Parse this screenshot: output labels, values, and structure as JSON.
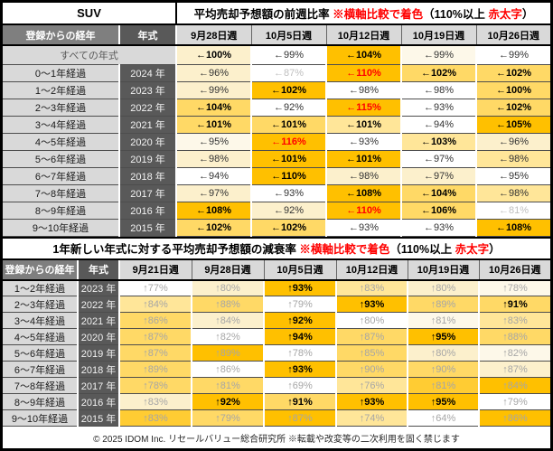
{
  "chart_data": [
    {
      "type": "table",
      "name": "week-over-week-average-sale-forecast-ratio",
      "corner_label": "SUV",
      "title_text": "平均売却予想額の前週比率 ※横軸比較で着色（110%以上 赤太字）",
      "title_parts": [
        {
          "t": "平均売却予想額の前週比率 ",
          "red": false
        },
        {
          "t": "※横軸比較で着色",
          "red": true
        },
        {
          "t": "（110%以上 ",
          "red": false
        },
        {
          "t": "赤太字",
          "red": true
        },
        {
          "t": "）",
          "red": false
        }
      ],
      "headers": {
        "period": "登録からの経年",
        "year": "年式",
        "dates": [
          "9月28日週",
          "10月5日週",
          "10月12日週",
          "10月19日週",
          "10月26日週"
        ]
      },
      "all_years": {
        "label": "すべての年式",
        "cells": [
          {
            "v": "←100%",
            "n": 100,
            "bg": "c2",
            "st": "b"
          },
          {
            "v": "←99%",
            "n": 99,
            "bg": "w",
            "st": "n"
          },
          {
            "v": "←104%",
            "n": 104,
            "bg": "o",
            "st": "b"
          },
          {
            "v": "←99%",
            "n": 99,
            "bg": "c1",
            "st": "n"
          },
          {
            "v": "←99%",
            "n": 99,
            "bg": "w",
            "st": "n"
          }
        ]
      },
      "rows": [
        {
          "label": "0～1年経過",
          "year": "2024 年",
          "cells": [
            {
              "v": "←96%",
              "n": 96,
              "bg": "c2",
              "st": "n"
            },
            {
              "v": "←87%",
              "n": 87,
              "bg": "w",
              "st": "lg"
            },
            {
              "v": "←110%",
              "n": 110,
              "bg": "o",
              "st": "r"
            },
            {
              "v": "←102%",
              "n": 102,
              "bg": "y2",
              "st": "b"
            },
            {
              "v": "←102%",
              "n": 102,
              "bg": "y2",
              "st": "b"
            }
          ]
        },
        {
          "label": "1～2年経過",
          "year": "2023 年",
          "cells": [
            {
              "v": "←99%",
              "n": 99,
              "bg": "c2",
              "st": "n"
            },
            {
              "v": "←102%",
              "n": 102,
              "bg": "o",
              "st": "b"
            },
            {
              "v": "←98%",
              "n": 98,
              "bg": "w",
              "st": "n"
            },
            {
              "v": "←98%",
              "n": 98,
              "bg": "w",
              "st": "n"
            },
            {
              "v": "←100%",
              "n": 100,
              "bg": "y2",
              "st": "b"
            }
          ]
        },
        {
          "label": "2～3年経過",
          "year": "2022 年",
          "cells": [
            {
              "v": "←104%",
              "n": 104,
              "bg": "y2",
              "st": "b"
            },
            {
              "v": "←92%",
              "n": 92,
              "bg": "w",
              "st": "n"
            },
            {
              "v": "←115%",
              "n": 115,
              "bg": "o",
              "st": "r"
            },
            {
              "v": "←93%",
              "n": 93,
              "bg": "w",
              "st": "n"
            },
            {
              "v": "←102%",
              "n": 102,
              "bg": "y2",
              "st": "b"
            }
          ]
        },
        {
          "label": "3～4年経過",
          "year": "2021 年",
          "cells": [
            {
              "v": "←101%",
              "n": 101,
              "bg": "y2",
              "st": "b"
            },
            {
              "v": "←101%",
              "n": 101,
              "bg": "y2",
              "st": "b"
            },
            {
              "v": "←101%",
              "n": 101,
              "bg": "y1",
              "st": "b"
            },
            {
              "v": "←94%",
              "n": 94,
              "bg": "w",
              "st": "n"
            },
            {
              "v": "←105%",
              "n": 105,
              "bg": "o",
              "st": "b"
            }
          ]
        },
        {
          "label": "4～5年経過",
          "year": "2020 年",
          "cells": [
            {
              "v": "←95%",
              "n": 95,
              "bg": "c1",
              "st": "n"
            },
            {
              "v": "←116%",
              "n": 116,
              "bg": "o",
              "st": "r"
            },
            {
              "v": "←93%",
              "n": 93,
              "bg": "w",
              "st": "n"
            },
            {
              "v": "←103%",
              "n": 103,
              "bg": "y1",
              "st": "b"
            },
            {
              "v": "←96%",
              "n": 96,
              "bg": "c2",
              "st": "n"
            }
          ]
        },
        {
          "label": "5～6年経過",
          "year": "2019 年",
          "cells": [
            {
              "v": "←98%",
              "n": 98,
              "bg": "c2",
              "st": "n"
            },
            {
              "v": "←101%",
              "n": 101,
              "bg": "o",
              "st": "b"
            },
            {
              "v": "←101%",
              "n": 101,
              "bg": "o",
              "st": "b"
            },
            {
              "v": "←97%",
              "n": 97,
              "bg": "w",
              "st": "n"
            },
            {
              "v": "←98%",
              "n": 98,
              "bg": "y1",
              "st": "n"
            }
          ]
        },
        {
          "label": "6～7年経過",
          "year": "2018 年",
          "cells": [
            {
              "v": "←94%",
              "n": 94,
              "bg": "w",
              "st": "n"
            },
            {
              "v": "←110%",
              "n": 110,
              "bg": "o",
              "st": "b"
            },
            {
              "v": "←98%",
              "n": 98,
              "bg": "c2",
              "st": "n"
            },
            {
              "v": "←97%",
              "n": 97,
              "bg": "c2",
              "st": "n"
            },
            {
              "v": "←95%",
              "n": 95,
              "bg": "w",
              "st": "n"
            }
          ]
        },
        {
          "label": "7～8年経過",
          "year": "2017 年",
          "cells": [
            {
              "v": "←97%",
              "n": 97,
              "bg": "c2",
              "st": "n"
            },
            {
              "v": "←93%",
              "n": 93,
              "bg": "w",
              "st": "n"
            },
            {
              "v": "←108%",
              "n": 108,
              "bg": "o",
              "st": "b"
            },
            {
              "v": "←104%",
              "n": 104,
              "bg": "y2",
              "st": "b"
            },
            {
              "v": "←98%",
              "n": 98,
              "bg": "y1",
              "st": "n"
            }
          ]
        },
        {
          "label": "8～9年経過",
          "year": "2016 年",
          "cells": [
            {
              "v": "←108%",
              "n": 108,
              "bg": "o",
              "st": "b"
            },
            {
              "v": "←92%",
              "n": 92,
              "bg": "c2",
              "st": "n"
            },
            {
              "v": "←110%",
              "n": 110,
              "bg": "o",
              "st": "r"
            },
            {
              "v": "←106%",
              "n": 106,
              "bg": "y2",
              "st": "b"
            },
            {
              "v": "←81%",
              "n": 81,
              "bg": "w",
              "st": "lg"
            }
          ]
        },
        {
          "label": "9～10年経過",
          "year": "2015 年",
          "cells": [
            {
              "v": "←102%",
              "n": 102,
              "bg": "y2",
              "st": "b"
            },
            {
              "v": "←102%",
              "n": 102,
              "bg": "y2",
              "st": "b"
            },
            {
              "v": "←93%",
              "n": 93,
              "bg": "w",
              "st": "n"
            },
            {
              "v": "←93%",
              "n": 93,
              "bg": "w",
              "st": "n"
            },
            {
              "v": "←108%",
              "n": 108,
              "bg": "o",
              "st": "b"
            }
          ]
        }
      ]
    },
    {
      "type": "table",
      "name": "decay-rate-vs-one-year-newer-model",
      "title_text": "1年新しい年式に対する平均売却予想額の減衰率 ※横軸比較で着色（110%以上 赤太字）",
      "title_parts": [
        {
          "t": "1年新しい年式に対する平均売却予想額の減衰率 ",
          "red": false
        },
        {
          "t": "※横軸比較で着色",
          "red": true
        },
        {
          "t": "（110%以上 ",
          "red": false
        },
        {
          "t": "赤太字",
          "red": true
        },
        {
          "t": "）",
          "red": false
        }
      ],
      "headers": {
        "period": "登録からの経年",
        "year": "年式",
        "dates": [
          "9月21日週",
          "9月28日週",
          "10月5日週",
          "10月12日週",
          "10月19日週",
          "10月26日週"
        ]
      },
      "rows": [
        {
          "label": "1～2年経過",
          "year": "2023 年",
          "cells": [
            {
              "v": "↑77%",
              "n": 77,
              "bg": "w",
              "st": "g"
            },
            {
              "v": "↑80%",
              "n": 80,
              "bg": "c2",
              "st": "g"
            },
            {
              "v": "↑93%",
              "n": 93,
              "bg": "o",
              "st": "b"
            },
            {
              "v": "↑83%",
              "n": 83,
              "bg": "y1",
              "st": "g"
            },
            {
              "v": "↑80%",
              "n": 80,
              "bg": "c2",
              "st": "g"
            },
            {
              "v": "↑78%",
              "n": 78,
              "bg": "c1",
              "st": "g"
            }
          ]
        },
        {
          "label": "2～3年経過",
          "year": "2022 年",
          "cells": [
            {
              "v": "↑84%",
              "n": 84,
              "bg": "y1",
              "st": "g"
            },
            {
              "v": "↑88%",
              "n": 88,
              "bg": "y2",
              "st": "g"
            },
            {
              "v": "↑79%",
              "n": 79,
              "bg": "w",
              "st": "g"
            },
            {
              "v": "↑93%",
              "n": 93,
              "bg": "o",
              "st": "b"
            },
            {
              "v": "↑89%",
              "n": 89,
              "bg": "y2",
              "st": "g"
            },
            {
              "v": "↑91%",
              "n": 91,
              "bg": "y2",
              "st": "b"
            }
          ]
        },
        {
          "label": "3～4年経過",
          "year": "2021 年",
          "cells": [
            {
              "v": "↑86%",
              "n": 86,
              "bg": "y2",
              "st": "g"
            },
            {
              "v": "↑84%",
              "n": 84,
              "bg": "c2",
              "st": "g"
            },
            {
              "v": "↑92%",
              "n": 92,
              "bg": "o",
              "st": "b"
            },
            {
              "v": "↑80%",
              "n": 80,
              "bg": "w",
              "st": "g"
            },
            {
              "v": "↑81%",
              "n": 81,
              "bg": "c1",
              "st": "g"
            },
            {
              "v": "↑83%",
              "n": 83,
              "bg": "y1",
              "st": "g"
            }
          ]
        },
        {
          "label": "4～5年経過",
          "year": "2020 年",
          "cells": [
            {
              "v": "↑87%",
              "n": 87,
              "bg": "y2",
              "st": "g"
            },
            {
              "v": "↑82%",
              "n": 82,
              "bg": "w",
              "st": "g"
            },
            {
              "v": "↑94%",
              "n": 94,
              "bg": "o",
              "st": "b"
            },
            {
              "v": "↑87%",
              "n": 87,
              "bg": "y2",
              "st": "g"
            },
            {
              "v": "↑95%",
              "n": 95,
              "bg": "o",
              "st": "b"
            },
            {
              "v": "↑88%",
              "n": 88,
              "bg": "y2",
              "st": "g"
            }
          ]
        },
        {
          "label": "5～6年経過",
          "year": "2019 年",
          "cells": [
            {
              "v": "↑87%",
              "n": 87,
              "bg": "y2",
              "st": "g"
            },
            {
              "v": "↑89%",
              "n": 89,
              "bg": "o",
              "st": "g"
            },
            {
              "v": "↑78%",
              "n": 78,
              "bg": "w",
              "st": "g"
            },
            {
              "v": "↑85%",
              "n": 85,
              "bg": "y2",
              "st": "g"
            },
            {
              "v": "↑80%",
              "n": 80,
              "bg": "c2",
              "st": "g"
            },
            {
              "v": "↑82%",
              "n": 82,
              "bg": "c1",
              "st": "g"
            }
          ]
        },
        {
          "label": "6～7年経過",
          "year": "2018 年",
          "cells": [
            {
              "v": "↑89%",
              "n": 89,
              "bg": "y2",
              "st": "g"
            },
            {
              "v": "↑86%",
              "n": 86,
              "bg": "w",
              "st": "g"
            },
            {
              "v": "↑93%",
              "n": 93,
              "bg": "o",
              "st": "b"
            },
            {
              "v": "↑90%",
              "n": 90,
              "bg": "y2",
              "st": "g"
            },
            {
              "v": "↑90%",
              "n": 90,
              "bg": "y2",
              "st": "g"
            },
            {
              "v": "↑87%",
              "n": 87,
              "bg": "c2",
              "st": "g"
            }
          ]
        },
        {
          "label": "7～8年経過",
          "year": "2017 年",
          "cells": [
            {
              "v": "↑78%",
              "n": 78,
              "bg": "y2",
              "st": "g"
            },
            {
              "v": "↑81%",
              "n": 81,
              "bg": "y2",
              "st": "g"
            },
            {
              "v": "↑69%",
              "n": 69,
              "bg": "w",
              "st": "g"
            },
            {
              "v": "↑76%",
              "n": 76,
              "bg": "y1",
              "st": "g"
            },
            {
              "v": "↑81%",
              "n": 81,
              "bg": "y3",
              "st": "g"
            },
            {
              "v": "↑84%",
              "n": 84,
              "bg": "o",
              "st": "g"
            }
          ]
        },
        {
          "label": "8～9年経過",
          "year": "2016 年",
          "cells": [
            {
              "v": "↑83%",
              "n": 83,
              "bg": "c2",
              "st": "g"
            },
            {
              "v": "↑92%",
              "n": 92,
              "bg": "o",
              "st": "b"
            },
            {
              "v": "↑91%",
              "n": 91,
              "bg": "y2",
              "st": "b"
            },
            {
              "v": "↑93%",
              "n": 93,
              "bg": "o",
              "st": "b"
            },
            {
              "v": "↑95%",
              "n": 95,
              "bg": "o",
              "st": "b"
            },
            {
              "v": "↑79%",
              "n": 79,
              "bg": "w",
              "st": "g"
            }
          ]
        },
        {
          "label": "9～10年経過",
          "year": "2015 年",
          "cells": [
            {
              "v": "↑83%",
              "n": 83,
              "bg": "y3",
              "st": "g"
            },
            {
              "v": "↑79%",
              "n": 79,
              "bg": "y2",
              "st": "g"
            },
            {
              "v": "↑87%",
              "n": 87,
              "bg": "o",
              "st": "g"
            },
            {
              "v": "↑74%",
              "n": 74,
              "bg": "y1",
              "st": "g"
            },
            {
              "v": "↑64%",
              "n": 64,
              "bg": "w",
              "st": "g"
            },
            {
              "v": "↑86%",
              "n": 86,
              "bg": "o",
              "st": "g"
            }
          ]
        }
      ]
    }
  ],
  "footer": "© 2025 IDOM Inc. リセールバリュー総合研究所 ※転載や改変等の二次利用を固く禁じます",
  "colors": {
    "scale": {
      "w": "#ffffff",
      "c1": "#fdf8e9",
      "c2": "#fcf0cc",
      "y1": "#ffe699",
      "y2": "#ffd966",
      "y3": "#ffcc33",
      "o": "#ffc000"
    },
    "text": {
      "n": "#333333",
      "b": "#000000",
      "r": "#ff0000",
      "g": "#a6a6a6",
      "lg": "#bfbfbf"
    },
    "header_gray": "#7f7f7f",
    "year_gray": "#595959",
    "label_gray": "#d9d9d9",
    "accent_orange": "#ffc000",
    "red_text": "#ff0000"
  }
}
